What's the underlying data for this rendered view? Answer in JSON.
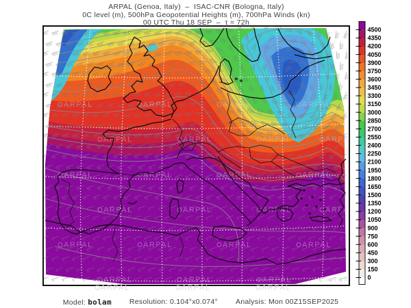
{
  "header": {
    "line1": "ARPAL (Genoa, Italy)  –  ISAC-CNR (Bologna, Italy)",
    "line2": "0C level (m), 500hPa Geopotential Heights (m), 700hPa Winds (kn)",
    "line3": "00 UTC Thu 18 SEP  –  τ = 72h"
  },
  "footer": {
    "model_label": "Model: ",
    "model_value": "bolam",
    "resolution_label": "Resolution: ",
    "resolution_value": "0.104°x0.074°",
    "analysis_label": "Analysis: ",
    "analysis_value": "Mon 00Z15SEP2025"
  },
  "watermark": {
    "text": "ARPAL"
  },
  "chart_data": {
    "type": "heatmap",
    "title": "ARPAL (Genoa, Italy) – ISAC-CNR (Bologna, Italy)",
    "subtitle": "0C level (m), 500hPa Geopotential Heights (m), 700hPa Winds (kn)",
    "valid_time": "00 UTC Thu 18 SEP – τ = 72h",
    "model": "bolam",
    "resolution": "0.104°x0.074°",
    "analysis": "Mon 00Z15SEP2025",
    "region": "Europe / Mediterranean",
    "shaded_field": "0C level (m)",
    "contour_field": "500hPa Geopotential Heights (m), gray contours, unlabeled",
    "wind_field": "700hPa Winds (kn), gray wind barbs",
    "grid": "white dotted lat-lon graticule",
    "legend_position": "right",
    "colorbar": {
      "units": "m",
      "min": 0,
      "max": 4500,
      "step": 150,
      "levels": [
        0,
        150,
        300,
        450,
        600,
        750,
        900,
        1050,
        1200,
        1350,
        1500,
        1650,
        1800,
        1950,
        2100,
        2250,
        2400,
        2550,
        2700,
        2850,
        3000,
        3150,
        3300,
        3450,
        3600,
        3750,
        3900,
        4050,
        4200,
        4350,
        4500
      ],
      "colors": [
        "#ffffff",
        "#f3ebe6",
        "#ecd9d1",
        "#e3c1bd",
        "#dbaab4",
        "#d092ab",
        "#c377a4",
        "#a9549d",
        "#8c3da4",
        "#6c37a8",
        "#5140b4",
        "#4153c4",
        "#3d66d2",
        "#477fdd",
        "#579ce5",
        "#61bce2",
        "#52cbc3",
        "#3fcb9e",
        "#37ca6f",
        "#47c94f",
        "#85d44b",
        "#bedd4d",
        "#e3da4d",
        "#edc249",
        "#f2a83f",
        "#f28f33",
        "#ee7429",
        "#e65724",
        "#da3628",
        "#c22040",
        "#a31664",
        "#8a0a9e"
      ]
    },
    "features": [
      {
        "area": "Iberia, western Mediterranean, North Africa, Italy, SE corner",
        "zero_c_level_m": "> 4500"
      },
      {
        "area": "France and central Europe band",
        "zero_c_level_m": "3900 - 4500"
      },
      {
        "area": "British Isles / North Sea",
        "zero_c_level_m": "3300 - 4200"
      },
      {
        "area": "southern Scandinavia",
        "zero_c_level_m": "2550 - 3000"
      },
      {
        "area": "Baltic trough core (Baltic states / Poland)",
        "zero_c_level_m": "1500 - 2100"
      },
      {
        "area": "NW Atlantic corner of domain",
        "zero_c_level_m": "1800 - 2700"
      },
      {
        "area": "Balkans tight gradient toward Black Sea corner",
        "zero_c_level_m": "2700 - 4500"
      }
    ]
  }
}
